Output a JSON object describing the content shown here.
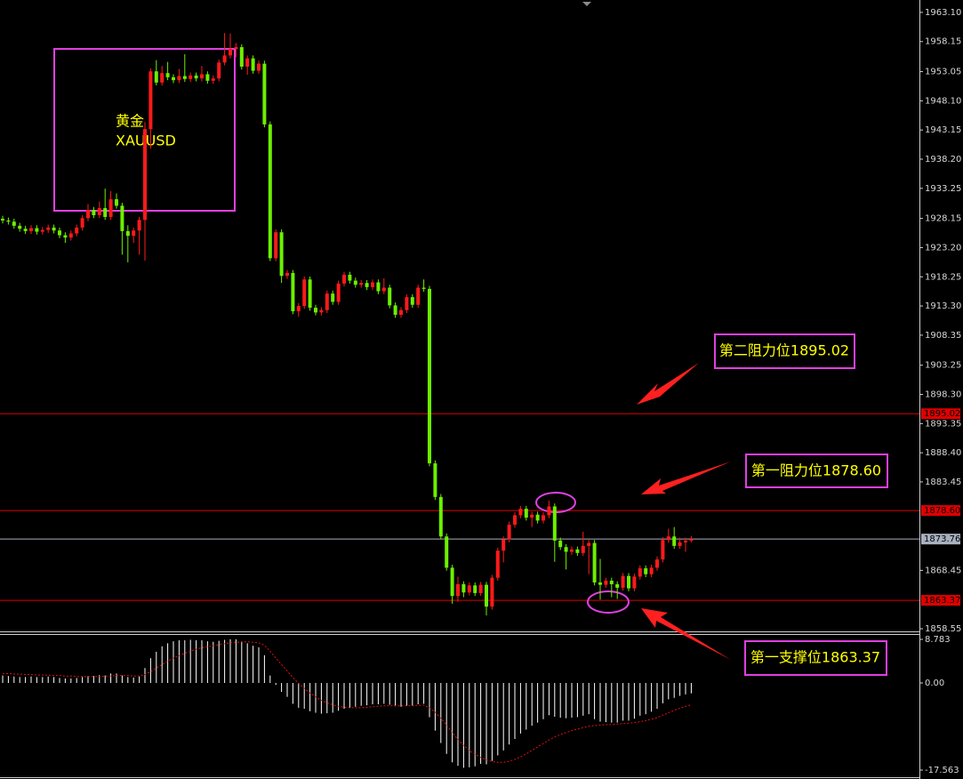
{
  "chart_data": {
    "type": "candlestick",
    "up_color": "#ff1a1a",
    "down_color": "#6cf000",
    "ylim": [
      1858.1,
      1964.9
    ],
    "yticks": [
      {
        "value": 1963.1,
        "label": "1963.10"
      },
      1958.15,
      1953.05,
      {
        "value": 1948.1,
        "label": "1948.10"
      },
      1943.15,
      {
        "value": 1938.2,
        "label": "1938.20"
      },
      1933.25,
      1928.15,
      {
        "value": 1923.2,
        "label": "1923.20"
      },
      1918.25,
      {
        "value": 1913.3,
        "label": "1913.30"
      },
      1908.35,
      1903.25,
      {
        "value": 1898.3,
        "label": "1898.30"
      },
      1893.35,
      {
        "value": 1888.4,
        "label": "1888.40"
      },
      1883.45,
      1868.45,
      1858.55
    ],
    "levels": [
      {
        "value": 1895.02,
        "color": "#e00000"
      },
      {
        "value": 1878.6,
        "label": "1878.60",
        "color": "#e00000"
      },
      {
        "value": 1873.76,
        "color": "#a8b0c0"
      },
      {
        "value": 1863.37,
        "color": "#e00000"
      }
    ],
    "annotations": [
      "黄金",
      "XAUUSD",
      "第二阻力位1895.02",
      "第一阻力位1878.60",
      "第一支撑位1863.37"
    ],
    "ohlc": [
      [
        1928.1,
        1928.6,
        1927.3,
        1927.8
      ],
      [
        1927.8,
        1928.3,
        1927.1,
        1927.6
      ],
      [
        1927.6,
        1928.1,
        1926.4,
        1926.9
      ],
      [
        1926.9,
        1927.4,
        1925.9,
        1926.4
      ],
      [
        1926.4,
        1926.9,
        1925.5,
        1926.0
      ],
      [
        1926.0,
        1927.0,
        1925.5,
        1926.5
      ],
      [
        1926.5,
        1927.0,
        1925.4,
        1925.9
      ],
      [
        1925.9,
        1926.7,
        1925.4,
        1926.2
      ],
      [
        1926.2,
        1927.1,
        1925.7,
        1926.6
      ],
      [
        1926.6,
        1927.1,
        1925.6,
        1926.1
      ],
      [
        1926.1,
        1926.6,
        1924.8,
        1925.3
      ],
      [
        1925.3,
        1925.8,
        1924.0,
        1924.9
      ],
      [
        1924.9,
        1926.1,
        1924.4,
        1925.6
      ],
      [
        1925.6,
        1927.1,
        1925.1,
        1926.6
      ],
      [
        1926.6,
        1928.7,
        1926.1,
        1928.2
      ],
      [
        1928.2,
        1930.6,
        1927.7,
        1929.6
      ],
      [
        1929.6,
        1930.1,
        1928.2,
        1928.7
      ],
      [
        1928.7,
        1931.0,
        1928.2,
        1929.9
      ],
      [
        1929.9,
        1933.2,
        1927.9,
        1928.4
      ],
      [
        1928.4,
        1932.8,
        1927.9,
        1931.4
      ],
      [
        1931.4,
        1932.4,
        1929.8,
        1930.3
      ],
      [
        1930.3,
        1930.8,
        1922.0,
        1926.0
      ],
      [
        1926.0,
        1927.0,
        1920.7,
        1925.2
      ],
      [
        1925.2,
        1926.6,
        1924.0,
        1926.1
      ],
      [
        1926.1,
        1928.4,
        1922.0,
        1927.9
      ],
      [
        1927.9,
        1944.5,
        1921.0,
        1943.3
      ],
      [
        1943.3,
        1953.6,
        1940.0,
        1953.1
      ],
      [
        1953.1,
        1955.0,
        1950.7,
        1951.2
      ],
      [
        1951.2,
        1954.0,
        1950.7,
        1952.8
      ],
      [
        1952.8,
        1954.7,
        1951.6,
        1952.1
      ],
      [
        1952.1,
        1952.6,
        1951.1,
        1951.6
      ],
      [
        1951.6,
        1953.5,
        1951.1,
        1952.3
      ],
      [
        1952.3,
        1956.0,
        1951.3,
        1951.8
      ],
      [
        1951.8,
        1952.9,
        1951.3,
        1952.4
      ],
      [
        1952.4,
        1952.9,
        1951.4,
        1951.9
      ],
      [
        1951.9,
        1954.0,
        1951.4,
        1952.6
      ],
      [
        1952.6,
        1953.1,
        1951.0,
        1951.5
      ],
      [
        1951.5,
        1952.4,
        1951.0,
        1951.9
      ],
      [
        1951.9,
        1955.1,
        1951.4,
        1954.6
      ],
      [
        1954.6,
        1959.6,
        1954.1,
        1955.8
      ],
      [
        1955.8,
        1959.5,
        1955.3,
        1956.9
      ],
      [
        1956.9,
        1957.9,
        1955.5,
        1957.2
      ],
      [
        1957.2,
        1957.7,
        1953.4,
        1953.9
      ],
      [
        1953.9,
        1955.8,
        1952.5,
        1955.3
      ],
      [
        1955.3,
        1955.8,
        1952.7,
        1953.2
      ],
      [
        1953.2,
        1954.9,
        1952.7,
        1954.4
      ],
      [
        1954.4,
        1954.9,
        1943.6,
        1944.1
      ],
      [
        1944.1,
        1944.6,
        1920.9,
        1921.4
      ],
      [
        1921.4,
        1926.3,
        1920.9,
        1925.8
      ],
      [
        1925.8,
        1926.3,
        1917.2,
        1918.4
      ],
      [
        1918.4,
        1919.4,
        1917.9,
        1918.9
      ],
      [
        1918.9,
        1919.4,
        1911.9,
        1912.4
      ],
      [
        1912.4,
        1913.8,
        1911.5,
        1913.3
      ],
      [
        1913.3,
        1918.3,
        1912.8,
        1917.8
      ],
      [
        1917.8,
        1918.3,
        1912.5,
        1913.0
      ],
      [
        1913.0,
        1913.5,
        1911.7,
        1912.2
      ],
      [
        1912.2,
        1913.1,
        1911.7,
        1912.6
      ],
      [
        1912.6,
        1915.9,
        1912.1,
        1915.4
      ],
      [
        1915.4,
        1915.9,
        1913.5,
        1914.0
      ],
      [
        1914.0,
        1917.6,
        1913.5,
        1917.1
      ],
      [
        1917.1,
        1919.1,
        1916.6,
        1918.6
      ],
      [
        1918.6,
        1919.1,
        1917.1,
        1917.6
      ],
      [
        1917.6,
        1918.1,
        1916.4,
        1916.9
      ],
      [
        1916.9,
        1917.7,
        1916.4,
        1917.2
      ],
      [
        1917.2,
        1917.7,
        1916.0,
        1916.5
      ],
      [
        1916.5,
        1917.8,
        1916.0,
        1917.3
      ],
      [
        1917.3,
        1917.8,
        1915.3,
        1915.8
      ],
      [
        1915.8,
        1918.0,
        1915.3,
        1916.4
      ],
      [
        1916.4,
        1916.9,
        1912.9,
        1913.4
      ],
      [
        1913.4,
        1913.9,
        1911.3,
        1911.8
      ],
      [
        1911.8,
        1913.1,
        1911.3,
        1912.6
      ],
      [
        1912.6,
        1915.3,
        1912.1,
        1914.8
      ],
      [
        1914.8,
        1915.3,
        1913.0,
        1913.5
      ],
      [
        1913.5,
        1916.9,
        1913.0,
        1916.4
      ],
      [
        1916.4,
        1917.8,
        1915.7,
        1916.2
      ],
      [
        1916.2,
        1916.7,
        1886.1,
        1886.6
      ],
      [
        1886.6,
        1887.1,
        1880.4,
        1880.9
      ],
      [
        1880.9,
        1881.4,
        1873.7,
        1874.2
      ],
      [
        1874.2,
        1874.7,
        1868.4,
        1868.9
      ],
      [
        1868.9,
        1869.4,
        1862.8,
        1864.1
      ],
      [
        1864.1,
        1867.4,
        1863.1,
        1866.1
      ],
      [
        1866.1,
        1866.6,
        1863.9,
        1864.7
      ],
      [
        1864.7,
        1866.4,
        1864.2,
        1865.9
      ],
      [
        1865.9,
        1866.4,
        1864.1,
        1864.6
      ],
      [
        1864.6,
        1866.5,
        1864.1,
        1866.0
      ],
      [
        1866.0,
        1866.5,
        1860.8,
        1862.3
      ],
      [
        1862.3,
        1867.7,
        1861.8,
        1867.2
      ],
      [
        1867.2,
        1872.3,
        1866.7,
        1871.8
      ],
      [
        1871.8,
        1874.2,
        1869.8,
        1873.7
      ],
      [
        1873.7,
        1876.7,
        1873.2,
        1876.2
      ],
      [
        1876.2,
        1878.3,
        1875.7,
        1877.8
      ],
      [
        1877.8,
        1879.4,
        1877.3,
        1878.9
      ],
      [
        1878.9,
        1879.4,
        1876.9,
        1877.4
      ],
      [
        1877.4,
        1878.4,
        1875.8,
        1877.9
      ],
      [
        1877.9,
        1878.4,
        1876.4,
        1876.9
      ],
      [
        1876.9,
        1878.3,
        1876.4,
        1877.8
      ],
      [
        1877.8,
        1880.3,
        1877.3,
        1879.3
      ],
      [
        1879.3,
        1879.8,
        1869.9,
        1873.5
      ],
      [
        1873.5,
        1874.0,
        1871.9,
        1872.4
      ],
      [
        1872.4,
        1872.9,
        1868.6,
        1871.6
      ],
      [
        1871.6,
        1872.5,
        1871.1,
        1872.0
      ],
      [
        1872.0,
        1872.5,
        1870.9,
        1871.4
      ],
      [
        1871.4,
        1875.0,
        1870.9,
        1872.6
      ],
      [
        1872.6,
        1873.6,
        1867.8,
        1873.1
      ],
      [
        1873.1,
        1873.6,
        1865.9,
        1866.4
      ],
      [
        1866.4,
        1870.4,
        1863.5,
        1866.0
      ],
      [
        1866.0,
        1867.2,
        1865.5,
        1866.7
      ],
      [
        1866.7,
        1867.2,
        1863.9,
        1866.1
      ],
      [
        1866.1,
        1866.6,
        1863.6,
        1865.5
      ],
      [
        1865.5,
        1868.0,
        1865.0,
        1867.5
      ],
      [
        1867.5,
        1868.0,
        1864.9,
        1865.4
      ],
      [
        1865.4,
        1867.9,
        1864.9,
        1867.4
      ],
      [
        1867.4,
        1869.3,
        1866.9,
        1868.8
      ],
      [
        1868.8,
        1869.3,
        1867.3,
        1867.8
      ],
      [
        1867.8,
        1869.4,
        1867.3,
        1868.9
      ],
      [
        1868.9,
        1870.8,
        1868.4,
        1870.3
      ],
      [
        1870.3,
        1874.1,
        1869.8,
        1873.6
      ],
      [
        1873.6,
        1875.5,
        1873.1,
        1874.2
      ],
      [
        1874.2,
        1875.8,
        1872.1,
        1872.6
      ],
      [
        1872.6,
        1874.0,
        1872.1,
        1873.2
      ],
      [
        1873.2,
        1874.0,
        1871.6,
        1873.5
      ],
      [
        1873.5,
        1874.3,
        1873.2,
        1873.76
      ]
    ],
    "macd": {
      "ylim": [
        -19.0,
        10.04
      ],
      "yticks": [
        8.783,
        {
          "value": 0,
          "label": "0.00"
        },
        -17.563
      ],
      "histogram_color": "#ffffff",
      "signal_color": "#e01010",
      "histogram": [
        1.5,
        1.4,
        1.3,
        1.2,
        1.2,
        1.3,
        1.2,
        1.2,
        1.3,
        1.2,
        1.0,
        0.9,
        0.9,
        1.0,
        1.2,
        1.4,
        1.4,
        1.6,
        1.5,
        1.9,
        1.9,
        1.5,
        1.2,
        1.1,
        1.3,
        3.0,
        5.0,
        6.3,
        7.4,
        8.0,
        8.4,
        8.6,
        8.6,
        8.7,
        8.6,
        8.6,
        8.4,
        8.3,
        8.5,
        8.7,
        8.8,
        8.8,
        8.3,
        8.0,
        7.5,
        7.2,
        5.6,
        1.5,
        -0.4,
        -1.8,
        -2.8,
        -4.2,
        -5.0,
        -5.2,
        -5.7,
        -6.0,
        -6.2,
        -6.1,
        -6.0,
        -5.6,
        -5.2,
        -5.0,
        -4.8,
        -4.6,
        -4.5,
        -4.3,
        -4.3,
        -4.2,
        -4.4,
        -4.7,
        -4.8,
        -4.6,
        -4.6,
        -4.3,
        -4.2,
        -6.9,
        -9.6,
        -12.1,
        -14.3,
        -16.0,
        -16.7,
        -17.1,
        -17.0,
        -16.8,
        -16.3,
        -16.4,
        -15.7,
        -14.6,
        -13.6,
        -12.4,
        -11.3,
        -10.2,
        -9.4,
        -8.6,
        -8.0,
        -7.3,
        -6.5,
        -6.8,
        -7.0,
        -7.1,
        -7.0,
        -6.9,
        -6.6,
        -6.3,
        -7.3,
        -7.8,
        -7.9,
        -8.0,
        -8.0,
        -7.6,
        -7.6,
        -7.2,
        -6.6,
        -6.3,
        -5.8,
        -5.2,
        -4.1,
        -3.3,
        -3.0,
        -2.6,
        -2.3,
        -2.1
      ],
      "signal": [
        1.9,
        1.9,
        1.8,
        1.8,
        1.7,
        1.7,
        1.6,
        1.6,
        1.6,
        1.5,
        1.5,
        1.4,
        1.4,
        1.3,
        1.3,
        1.3,
        1.3,
        1.3,
        1.4,
        1.4,
        1.5,
        1.5,
        1.5,
        1.4,
        1.4,
        1.7,
        2.3,
        3.0,
        3.7,
        4.4,
        5.0,
        5.5,
        6.0,
        6.4,
        6.8,
        7.1,
        7.3,
        7.5,
        7.7,
        7.9,
        8.1,
        8.2,
        8.3,
        8.3,
        8.2,
        8.1,
        7.6,
        6.4,
        5.0,
        3.7,
        2.4,
        1.1,
        -0.1,
        -1.1,
        -2.0,
        -2.8,
        -3.5,
        -4.0,
        -4.4,
        -4.7,
        -4.9,
        -5.0,
        -5.0,
        -5.0,
        -4.9,
        -4.8,
        -4.7,
        -4.6,
        -4.6,
        -4.6,
        -4.6,
        -4.6,
        -4.6,
        -4.5,
        -4.5,
        -5.0,
        -5.9,
        -7.1,
        -8.5,
        -10.0,
        -11.4,
        -12.6,
        -13.6,
        -14.4,
        -15.0,
        -15.5,
        -15.8,
        -16.0,
        -16.0,
        -15.8,
        -15.4,
        -14.9,
        -14.3,
        -13.6,
        -12.9,
        -12.2,
        -11.5,
        -10.9,
        -10.4,
        -10.0,
        -9.6,
        -9.3,
        -9.0,
        -8.7,
        -8.6,
        -8.5,
        -8.4,
        -8.4,
        -8.3,
        -8.2,
        -8.1,
        -8.0,
        -7.8,
        -7.6,
        -7.3,
        -7.0,
        -6.5,
        -6.0,
        -5.5,
        -5.1,
        -4.7,
        -4.4
      ]
    }
  }
}
